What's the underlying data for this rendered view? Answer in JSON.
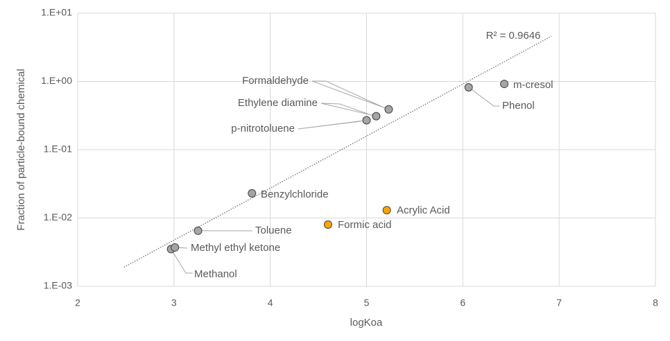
{
  "chart_data": {
    "type": "scatter",
    "x_label": "logKoa",
    "y_label": "Fraction of particle-bound chemical",
    "xlim": [
      2,
      8
    ],
    "xticks": [
      2,
      3,
      4,
      5,
      6,
      7,
      8
    ],
    "ylim": [
      0.001,
      10
    ],
    "yticks": [
      {
        "value": 0.001,
        "label": "1.E-03"
      },
      {
        "value": 0.01,
        "label": "1.E-02"
      },
      {
        "value": 0.1,
        "label": "1.E-01"
      },
      {
        "value": 1,
        "label": "1.E+00"
      },
      {
        "value": 10,
        "label": "1.E+01"
      }
    ],
    "log_y": true,
    "grid": true,
    "series": [
      {
        "color": "#a5a5a5",
        "labels": [
          "Methanol",
          "Methyl ethyl ketone",
          "Toluene",
          "Benzylchloride",
          "p-nitrotoluene",
          "Ethylene diamine",
          "Formaldehyde",
          "Phenol",
          "m-cresol"
        ],
        "x": [
          2.97,
          3.01,
          3.25,
          3.81,
          5.0,
          5.1,
          5.23,
          6.06,
          6.43
        ],
        "values": [
          0.0035,
          0.0037,
          0.0065,
          0.023,
          0.27,
          0.31,
          0.39,
          0.82,
          0.92
        ]
      },
      {
        "color": "#ffa500",
        "labels": [
          "Formic acid",
          "Acrylic Acid"
        ],
        "x": [
          4.6,
          5.21
        ],
        "values": [
          0.008,
          0.013
        ]
      }
    ],
    "trendline": {
      "label": "R² = 0.9646",
      "color": "#7f7f7f",
      "x": [
        2.48,
        6.92
      ],
      "values": [
        0.0019,
        4.6
      ]
    }
  }
}
